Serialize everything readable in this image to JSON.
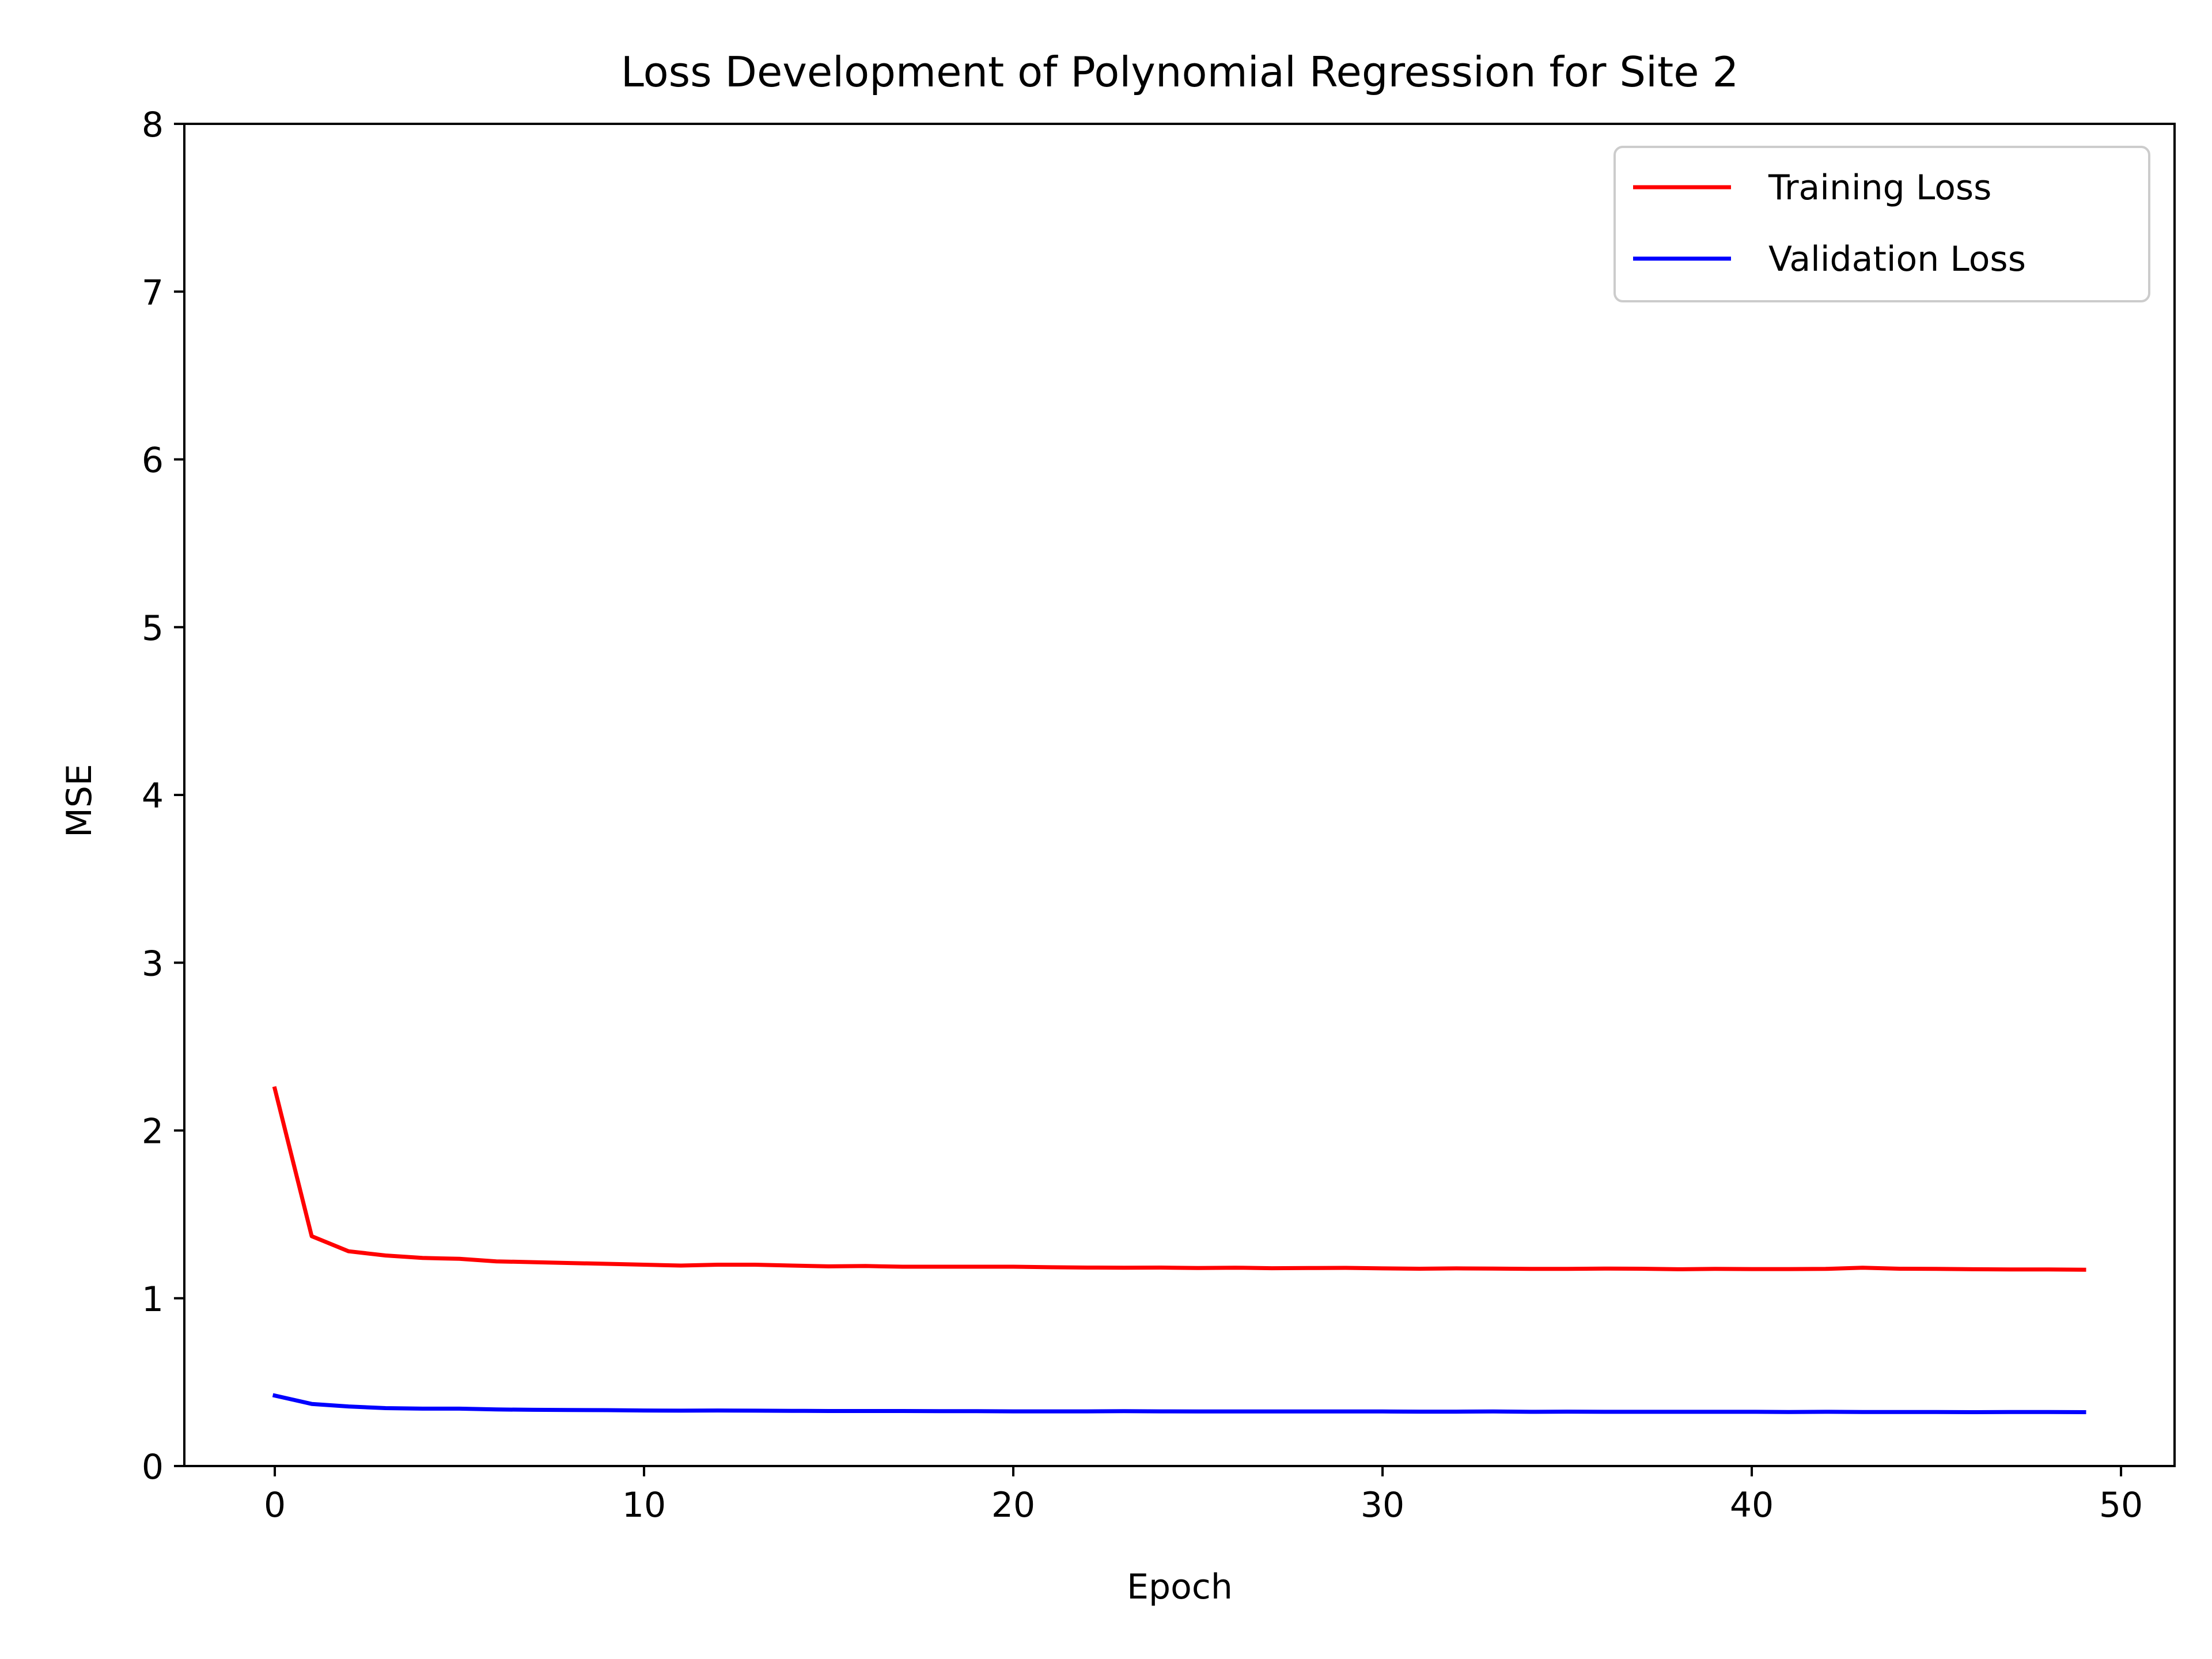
{
  "chart_data": {
    "type": "line",
    "title": "Loss Development of Polynomial Regression for Site 2",
    "xlabel": "Epoch",
    "ylabel": "MSE",
    "xlim": [
      -2.45,
      51.45
    ],
    "ylim": [
      0,
      8
    ],
    "xticks": [
      0,
      10,
      20,
      30,
      40,
      50
    ],
    "yticks": [
      0,
      1,
      2,
      3,
      4,
      5,
      6,
      7,
      8
    ],
    "grid": false,
    "legend_position": "top-right",
    "x": [
      0,
      1,
      2,
      3,
      4,
      5,
      6,
      7,
      8,
      9,
      10,
      11,
      12,
      13,
      14,
      15,
      16,
      17,
      18,
      19,
      20,
      21,
      22,
      23,
      24,
      25,
      26,
      27,
      28,
      29,
      30,
      31,
      32,
      33,
      34,
      35,
      36,
      37,
      38,
      39,
      40,
      41,
      42,
      43,
      44,
      45,
      46,
      47,
      48,
      49
    ],
    "series": [
      {
        "name": "Training Loss",
        "color": "#ff0000",
        "values": [
          2.25,
          1.37,
          1.28,
          1.255,
          1.24,
          1.235,
          1.22,
          1.215,
          1.21,
          1.205,
          1.2,
          1.195,
          1.2,
          1.2,
          1.195,
          1.19,
          1.192,
          1.188,
          1.188,
          1.188,
          1.188,
          1.185,
          1.183,
          1.182,
          1.183,
          1.18,
          1.182,
          1.179,
          1.18,
          1.181,
          1.178,
          1.176,
          1.178,
          1.177,
          1.175,
          1.175,
          1.177,
          1.176,
          1.173,
          1.175,
          1.174,
          1.174,
          1.175,
          1.182,
          1.176,
          1.175,
          1.173,
          1.172,
          1.172,
          1.17
        ]
      },
      {
        "name": "Validation Loss",
        "color": "#0000ff",
        "values": [
          0.42,
          0.37,
          0.355,
          0.345,
          0.342,
          0.342,
          0.337,
          0.335,
          0.334,
          0.333,
          0.331,
          0.33,
          0.331,
          0.33,
          0.329,
          0.328,
          0.328,
          0.328,
          0.327,
          0.327,
          0.326,
          0.326,
          0.326,
          0.327,
          0.326,
          0.325,
          0.325,
          0.325,
          0.325,
          0.325,
          0.325,
          0.324,
          0.324,
          0.325,
          0.323,
          0.324,
          0.323,
          0.323,
          0.323,
          0.323,
          0.323,
          0.322,
          0.323,
          0.322,
          0.322,
          0.322,
          0.321,
          0.322,
          0.322,
          0.321
        ]
      }
    ]
  }
}
